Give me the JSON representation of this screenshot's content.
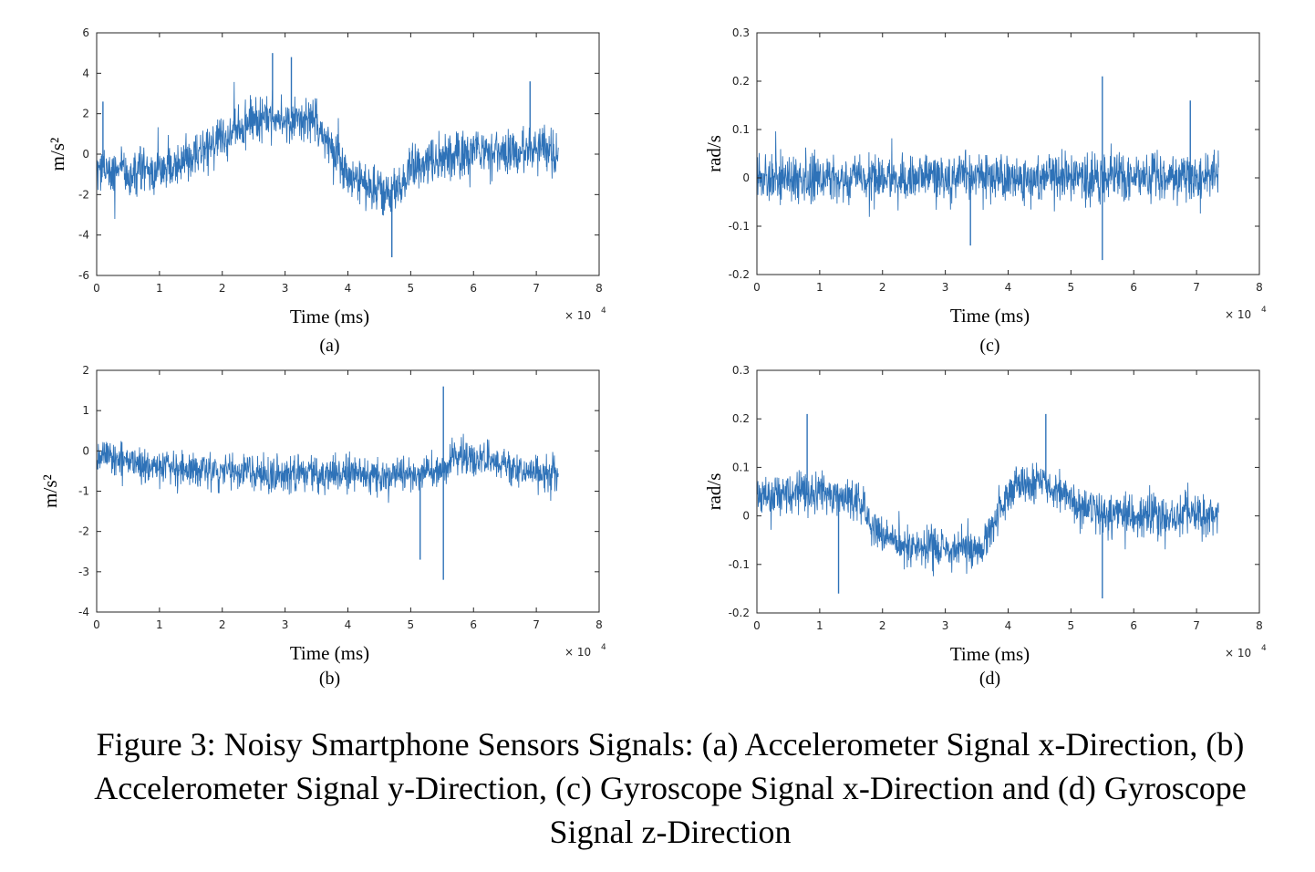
{
  "caption": "Figure 3: Noisy Smartphone Sensors Signals: (a) Accelerometer Signal x-Direction, (b) Accelerometer Signal y-Direction, (c) Gyroscope Signal x-Direction and (d) Gyroscope Signal z-Direction",
  "series_color": "#2E72B8",
  "chart_data": [
    {
      "id": "a",
      "type": "line",
      "panel_label": "(a)",
      "xlabel": "Time (ms)",
      "ylabel": "m/s²",
      "x_exponent_label": "× 10",
      "x_exponent": "4",
      "xlim": [
        0,
        8
      ],
      "ylim": [
        -6,
        6
      ],
      "xticks": [
        0,
        1,
        2,
        3,
        4,
        5,
        6,
        7,
        8
      ],
      "yticks": [
        -6,
        -4,
        -2,
        0,
        2,
        4,
        6
      ],
      "grid": false,
      "x_end": 7.35,
      "trend": [
        [
          0,
          -0.6
        ],
        [
          0.5,
          -0.9
        ],
        [
          1.0,
          -0.9
        ],
        [
          1.5,
          -0.2
        ],
        [
          2.0,
          0.8
        ],
        [
          2.5,
          1.6
        ],
        [
          3.0,
          1.8
        ],
        [
          3.5,
          1.7
        ],
        [
          3.7,
          0.5
        ],
        [
          4.0,
          -1.0
        ],
        [
          4.4,
          -1.8
        ],
        [
          4.8,
          -1.9
        ],
        [
          5.0,
          -0.6
        ],
        [
          5.5,
          -0.2
        ],
        [
          6.0,
          0.2
        ],
        [
          6.5,
          0.1
        ],
        [
          7.0,
          0.2
        ],
        [
          7.35,
          0.0
        ]
      ],
      "noise_amplitude": 1.2,
      "spikes": [
        [
          0.1,
          2.6
        ],
        [
          2.8,
          5.0
        ],
        [
          3.1,
          4.8
        ],
        [
          4.7,
          -5.1
        ],
        [
          6.9,
          3.6
        ]
      ]
    },
    {
      "id": "b",
      "type": "line",
      "panel_label": "(b)",
      "xlabel": "Time (ms)",
      "ylabel": "m/s²",
      "x_exponent_label": "× 10",
      "x_exponent": "4",
      "xlim": [
        0,
        8
      ],
      "ylim": [
        -4,
        2
      ],
      "xticks": [
        0,
        1,
        2,
        3,
        4,
        5,
        6,
        7,
        8
      ],
      "yticks": [
        -4,
        -3,
        -2,
        -1,
        0,
        1,
        2
      ],
      "grid": false,
      "x_end": 7.35,
      "trend": [
        [
          0,
          -0.1
        ],
        [
          1.0,
          -0.4
        ],
        [
          2.0,
          -0.5
        ],
        [
          3.0,
          -0.6
        ],
        [
          4.0,
          -0.6
        ],
        [
          5.0,
          -0.6
        ],
        [
          5.5,
          -0.5
        ],
        [
          5.7,
          -0.1
        ],
        [
          6.2,
          -0.2
        ],
        [
          6.6,
          -0.5
        ],
        [
          7.35,
          -0.6
        ]
      ],
      "noise_amplitude": 0.48,
      "spikes": [
        [
          5.52,
          1.6
        ],
        [
          5.52,
          -3.2
        ],
        [
          5.15,
          -2.7
        ]
      ]
    },
    {
      "id": "c",
      "type": "line",
      "panel_label": "(c)",
      "xlabel": "Time (ms)",
      "ylabel": "rad/s",
      "x_exponent_label": "× 10",
      "x_exponent": "4",
      "xlim": [
        0,
        8
      ],
      "ylim": [
        -0.2,
        0.3
      ],
      "xticks": [
        0,
        1,
        2,
        3,
        4,
        5,
        6,
        7,
        8
      ],
      "yticks": [
        -0.2,
        -0.1,
        0,
        0.1,
        0.2,
        0.3
      ],
      "grid": false,
      "x_end": 7.35,
      "trend": [
        [
          0,
          0.0
        ],
        [
          7.35,
          0.0
        ]
      ],
      "noise_amplitude": 0.055,
      "spikes": [
        [
          5.5,
          0.21
        ],
        [
          5.5,
          -0.17
        ],
        [
          6.9,
          0.16
        ],
        [
          3.4,
          -0.14
        ]
      ]
    },
    {
      "id": "d",
      "type": "line",
      "panel_label": "(d)",
      "xlabel": "Time (ms)",
      "ylabel": "rad/s",
      "x_exponent_label": "× 10",
      "x_exponent": "4",
      "xlim": [
        0,
        8
      ],
      "ylim": [
        -0.2,
        0.3
      ],
      "xticks": [
        0,
        1,
        2,
        3,
        4,
        5,
        6,
        7,
        8
      ],
      "yticks": [
        -0.2,
        -0.1,
        0,
        0.1,
        0.2,
        0.3
      ],
      "grid": false,
      "x_end": 7.35,
      "trend": [
        [
          0,
          0.04
        ],
        [
          1.0,
          0.05
        ],
        [
          1.6,
          0.03
        ],
        [
          1.9,
          -0.03
        ],
        [
          2.3,
          -0.06
        ],
        [
          3.0,
          -0.07
        ],
        [
          3.6,
          -0.07
        ],
        [
          3.8,
          0.0
        ],
        [
          4.1,
          0.06
        ],
        [
          4.5,
          0.07
        ],
        [
          4.9,
          0.05
        ],
        [
          5.2,
          0.01
        ],
        [
          6.0,
          0.0
        ],
        [
          7.35,
          0.0
        ]
      ],
      "noise_amplitude": 0.045,
      "spikes": [
        [
          0.8,
          0.21
        ],
        [
          4.6,
          0.21
        ],
        [
          5.5,
          -0.17
        ],
        [
          1.3,
          -0.16
        ]
      ]
    }
  ]
}
